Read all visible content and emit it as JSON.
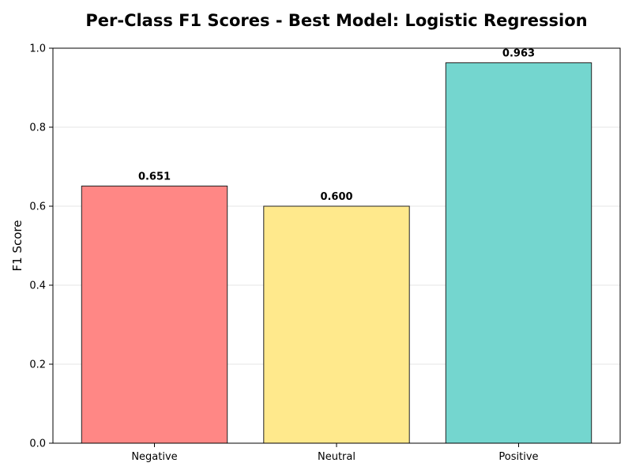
{
  "chart_data": {
    "type": "bar",
    "title": "Per-Class F1 Scores - Best Model: Logistic Regression",
    "xlabel": "",
    "ylabel": "F1 Score",
    "categories": [
      "Negative",
      "Neutral",
      "Positive"
    ],
    "values": [
      0.651,
      0.6,
      0.963
    ],
    "value_labels": [
      "0.651",
      "0.600",
      "0.963"
    ],
    "colors": [
      "#ff8785",
      "#ffe98c",
      "#74d6cf"
    ],
    "ylim": [
      0,
      1.0
    ],
    "yticks": [
      0.0,
      0.2,
      0.4,
      0.6,
      0.8,
      1.0
    ],
    "ytick_labels": [
      "0.0",
      "0.2",
      "0.4",
      "0.6",
      "0.8",
      "1.0"
    ],
    "grid": true,
    "legend": "none"
  }
}
